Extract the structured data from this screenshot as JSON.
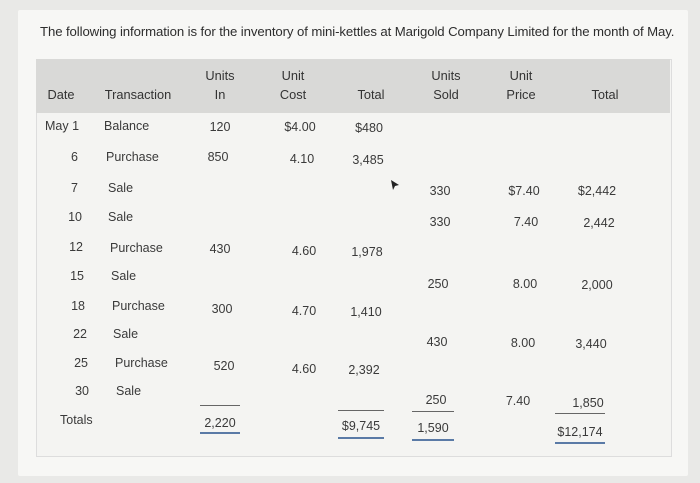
{
  "intro_text": "The following information is for the inventory of mini-kettles at Marigold Company Limited for the month of May.",
  "headers": {
    "date": "Date",
    "transaction": "Transaction",
    "units_in_1": "Units",
    "units_in_2": "In",
    "unit_cost_1": "Unit",
    "unit_cost_2": "Cost",
    "total_in": "Total",
    "units_sold_1": "Units",
    "units_sold_2": "Sold",
    "unit_price_1": "Unit",
    "unit_price_2": "Price",
    "total_sold": "Total"
  },
  "rows": [
    {
      "date": "May 1",
      "transaction": "Balance",
      "units_in": "120",
      "unit_cost": "$4.00",
      "total_in": "$480",
      "units_sold": "",
      "unit_price": "",
      "total_sold": ""
    },
    {
      "date": "6",
      "transaction": "Purchase",
      "units_in": "850",
      "unit_cost": "4.10",
      "total_in": "3,485",
      "units_sold": "",
      "unit_price": "",
      "total_sold": ""
    },
    {
      "date": "7",
      "transaction": "Sale",
      "units_in": "",
      "unit_cost": "",
      "total_in": "",
      "units_sold": "330",
      "unit_price": "$7.40",
      "total_sold": "$2,442"
    },
    {
      "date": "10",
      "transaction": "Sale",
      "units_in": "",
      "unit_cost": "",
      "total_in": "",
      "units_sold": "330",
      "unit_price": "7.40",
      "total_sold": "2,442"
    },
    {
      "date": "12",
      "transaction": "Purchase",
      "units_in": "430",
      "unit_cost": "4.60",
      "total_in": "1,978",
      "units_sold": "",
      "unit_price": "",
      "total_sold": ""
    },
    {
      "date": "15",
      "transaction": "Sale",
      "units_in": "",
      "unit_cost": "",
      "total_in": "",
      "units_sold": "250",
      "unit_price": "8.00",
      "total_sold": "2,000"
    },
    {
      "date": "18",
      "transaction": "Purchase",
      "units_in": "300",
      "unit_cost": "4.70",
      "total_in": "1,410",
      "units_sold": "",
      "unit_price": "",
      "total_sold": ""
    },
    {
      "date": "22",
      "transaction": "Sale",
      "units_in": "",
      "unit_cost": "",
      "total_in": "",
      "units_sold": "430",
      "unit_price": "8.00",
      "total_sold": "3,440"
    },
    {
      "date": "25",
      "transaction": "Purchase",
      "units_in": "520",
      "unit_cost": "4.60",
      "total_in": "2,392",
      "units_sold": "",
      "unit_price": "",
      "total_sold": ""
    },
    {
      "date": "30",
      "transaction": "Sale",
      "units_in": "",
      "unit_cost": "",
      "total_in": "",
      "units_sold": "250",
      "unit_price": "7.40",
      "total_sold": "1,850"
    }
  ],
  "totals": {
    "label": "Totals",
    "units_in": "2,220",
    "total_in": "$9,745",
    "units_sold": "1,590",
    "total_sold": "$12,174"
  }
}
